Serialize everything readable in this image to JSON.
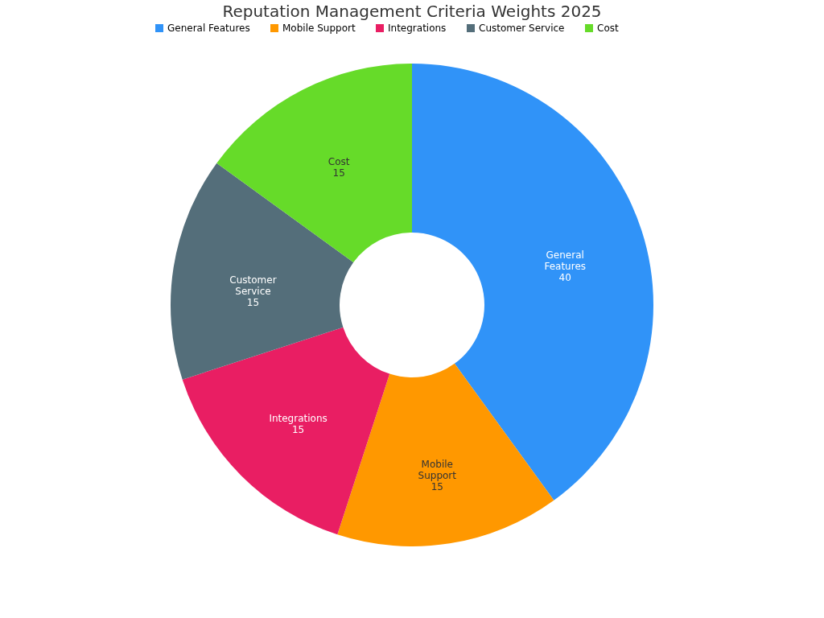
{
  "chart_data": {
    "type": "donut",
    "title": "Reputation Management Criteria Weights 2025",
    "categories": [
      "General Features",
      "Mobile Support",
      "Integrations",
      "Customer Service",
      "Cost"
    ],
    "values": [
      40,
      15,
      15,
      15,
      15
    ],
    "colors": [
      "#3093f8",
      "#ff9800",
      "#e91e63",
      "#546e7a",
      "#66db29"
    ],
    "data_labels": true,
    "legend": "top"
  }
}
